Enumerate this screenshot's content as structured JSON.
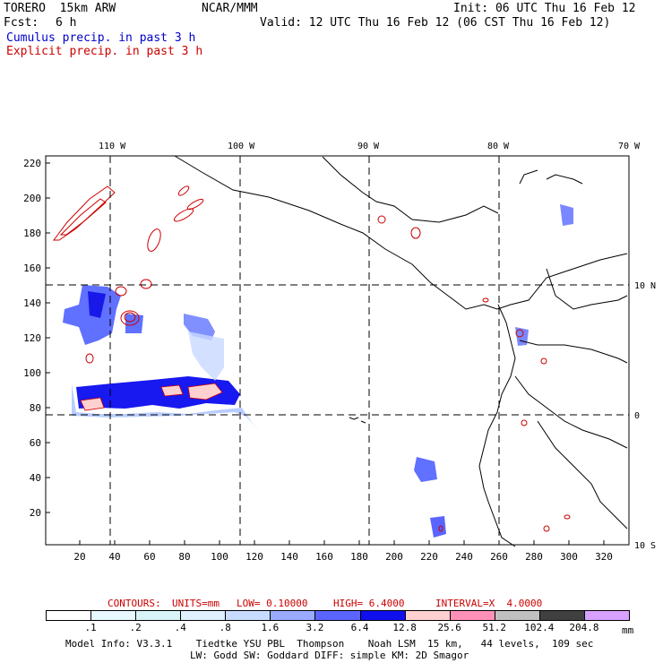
{
  "header": {
    "model": "TORERO  15km ARW",
    "center": "NCAR/MMM",
    "init": "Init: 06 UTC Thu 16 Feb 12",
    "fcst_label": "Fcst:",
    "fcst_value": "6 h",
    "valid": "Valid: 12 UTC Thu 16 Feb 12 (06 CST Thu 16 Feb 12)",
    "field1": "Cumulus precip. in past 3 h",
    "field2": "Explicit precip. in past 3 h",
    "field1_color": "#0000cc",
    "field2_color": "#cc0000"
  },
  "map": {
    "lon_labels": [
      "110 W",
      "100 W",
      "90 W",
      "80 W",
      "70 W"
    ],
    "lat_labels": [
      "10 N",
      "0",
      "10 S"
    ],
    "y_ticks": [
      "220",
      "200",
      "180",
      "160",
      "140",
      "120",
      "100",
      "80",
      "60",
      "40",
      "20"
    ],
    "x_ticks": [
      "20",
      "40",
      "60",
      "80",
      "100",
      "120",
      "140",
      "160",
      "180",
      "200",
      "220",
      "240",
      "260",
      "280",
      "300",
      "320"
    ]
  },
  "contours": {
    "label": "CONTOURS:",
    "units": "UNITS=mm",
    "low": "LOW= 0.10000",
    "high": "HIGH= 6.4000",
    "interval": "INTERVAL=X  4.0000"
  },
  "colorbar": {
    "labels": [
      ".1",
      ".2",
      ".4",
      ".8",
      "1.6",
      "3.2",
      "6.4",
      "12.8",
      "25.6",
      "51.2",
      "102.4",
      "204.8"
    ],
    "unit": "mm",
    "colors": [
      "#ffffff",
      "#e8f8ff",
      "#d8f4f8",
      "#e0f0ff",
      "#c8dcff",
      "#9aaaff",
      "#5a64ff",
      "#1010ee",
      "#ffd0d0",
      "#ff90b8",
      "#c0c0c0",
      "#404040",
      "#d8a0ff"
    ]
  },
  "footer": {
    "line1": "Model Info: V3.3.1    Tiedtke YSU PBL  Thompson    Noah LSM  15 km,   44 levels,  109 sec",
    "line2": "LW: Godd SW: Goddard DIFF: simple KM: 2D Smagor"
  }
}
